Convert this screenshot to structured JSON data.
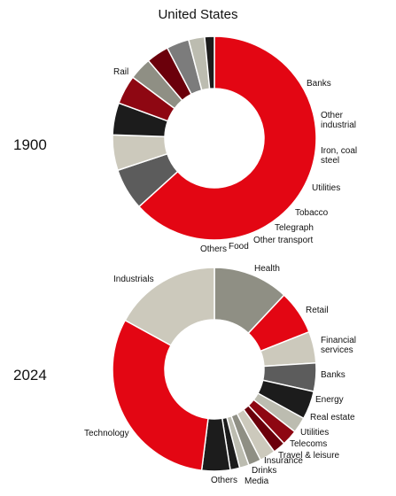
{
  "title": "United States",
  "chart_data": [
    {
      "type": "pie",
      "variant": "donut",
      "title": "1900",
      "unit": "share of market (%)",
      "slices": [
        {
          "label": "Rail",
          "value": 62.0,
          "color": "#e30613"
        },
        {
          "label": "Banks",
          "value": 6.5,
          "color": "#5c5c5c"
        },
        {
          "label": "Other industrial",
          "value": 5.5,
          "color": "#ccc9bc"
        },
        {
          "label": "Iron, coal steel",
          "value": 5.0,
          "color": "#1c1c1c"
        },
        {
          "label": "Utilities",
          "value": 4.5,
          "color": "#8e0712"
        },
        {
          "label": "Tobacco",
          "value": 3.5,
          "color": "#8f8f84"
        },
        {
          "label": "Telegraph",
          "value": 3.5,
          "color": "#6b000b"
        },
        {
          "label": "Other transport",
          "value": 3.5,
          "color": "#7c7c7c"
        },
        {
          "label": "Food",
          "value": 2.5,
          "color": "#bcbcb0"
        },
        {
          "label": "Others",
          "value": 1.5,
          "color": "#1c1c1c"
        }
      ]
    },
    {
      "type": "pie",
      "variant": "donut",
      "title": "2024",
      "unit": "share of market (%)",
      "slices": [
        {
          "label": "Health",
          "value": 12.0,
          "color": "#8f8f84"
        },
        {
          "label": "Retail",
          "value": 7.0,
          "color": "#e30613"
        },
        {
          "label": "Financial services",
          "value": 5.0,
          "color": "#ccc9bc"
        },
        {
          "label": "Banks",
          "value": 4.5,
          "color": "#5c5c5c"
        },
        {
          "label": "Energy",
          "value": 4.5,
          "color": "#1c1c1c"
        },
        {
          "label": "Real estate",
          "value": 2.5,
          "color": "#bcbcb0"
        },
        {
          "label": "Utilities",
          "value": 2.5,
          "color": "#8e0712"
        },
        {
          "label": "Telecoms",
          "value": 2.0,
          "color": "#6b000b"
        },
        {
          "label": "Travel & leisure",
          "value": 2.5,
          "color": "#ccc9bc"
        },
        {
          "label": "Insurance",
          "value": 2.0,
          "color": "#8f8f84"
        },
        {
          "label": "Drinks",
          "value": 1.5,
          "color": "#bcbcb0"
        },
        {
          "label": "Media",
          "value": 1.5,
          "color": "#1c1c1c"
        },
        {
          "label": "Others",
          "value": 4.5,
          "color": "#1c1c1c"
        },
        {
          "label": "Technology",
          "value": 31.0,
          "color": "#e30613"
        },
        {
          "label": "Industrials",
          "value": 17.0,
          "color": "#ccc9bc"
        }
      ]
    }
  ]
}
